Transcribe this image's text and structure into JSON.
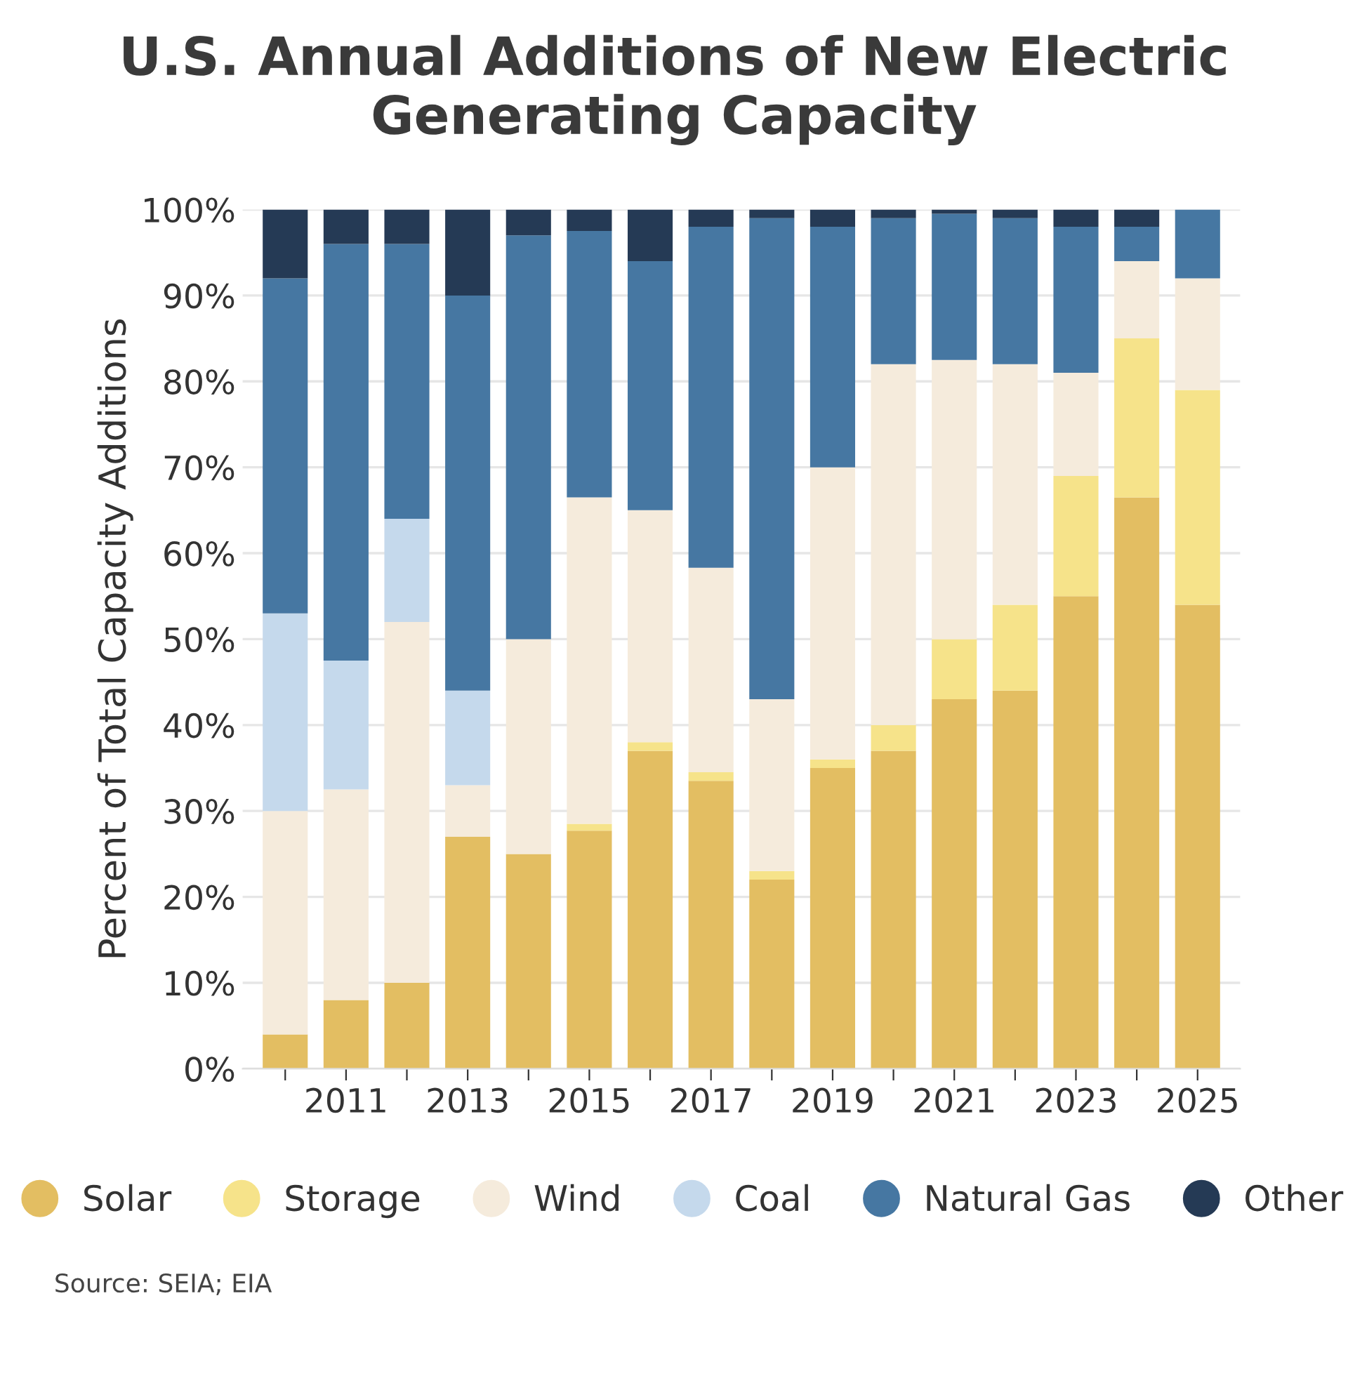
{
  "chart_data": {
    "type": "bar",
    "stacked": true,
    "title": "U.S. Annual Additions of New Electric Generating Capacity",
    "ylabel": "Percent of Total Capacity Additions",
    "categories": [
      null,
      "2011",
      null,
      "2013",
      null,
      "2015",
      null,
      "2017",
      null,
      "2019",
      null,
      "2021",
      null,
      "2023",
      null,
      "2025"
    ],
    "series": [
      {
        "name": "Solar",
        "color": "#e3be62",
        "values": [
          4,
          8,
          10,
          27,
          25,
          27.7,
          37,
          33.5,
          22,
          35,
          37,
          43,
          44,
          55,
          66.5,
          54
        ]
      },
      {
        "name": "Storage",
        "color": "#f6e38a",
        "values": [
          0,
          0,
          0,
          0,
          0,
          0.8,
          1,
          1,
          1,
          1,
          3,
          7,
          10,
          14,
          18.5,
          25
        ]
      },
      {
        "name": "Wind",
        "color": "#f5ebdc",
        "values": [
          26,
          24.5,
          42,
          6,
          25,
          38,
          27,
          23.8,
          20,
          34,
          42,
          32.5,
          28,
          12,
          9,
          13
        ]
      },
      {
        "name": "Coal",
        "color": "#c5d9ec",
        "values": [
          23,
          15,
          12,
          11,
          0,
          0,
          0,
          0,
          0,
          0,
          0,
          0,
          0,
          0,
          0,
          0
        ]
      },
      {
        "name": "Natural Gas",
        "color": "#4677a2",
        "values": [
          39,
          48.5,
          32,
          46,
          47,
          31,
          29,
          39.7,
          56,
          28,
          17,
          17,
          17,
          17,
          4,
          8
        ]
      },
      {
        "name": "Other",
        "color": "#253a55",
        "values": [
          8,
          4,
          4,
          10,
          3,
          2.5,
          6,
          2,
          1,
          2,
          1,
          0.5,
          1,
          2,
          2,
          0
        ]
      }
    ],
    "ylim": [
      0,
      100
    ],
    "yticks": [
      {
        "value": 0,
        "label": "0%"
      },
      {
        "value": 10,
        "label": "10%"
      },
      {
        "value": 20,
        "label": "20%"
      },
      {
        "value": 30,
        "label": "30%"
      },
      {
        "value": 40,
        "label": "40%"
      },
      {
        "value": 50,
        "label": "50%"
      },
      {
        "value": 60,
        "label": "60%"
      },
      {
        "value": 70,
        "label": "70%"
      },
      {
        "value": 80,
        "label": "80%"
      },
      {
        "value": 90,
        "label": "90%"
      },
      {
        "value": 100,
        "label": "100%"
      }
    ],
    "grid": "y",
    "legend": "bottom",
    "annotations": [
      "Source: SEIA; EIA"
    ]
  }
}
